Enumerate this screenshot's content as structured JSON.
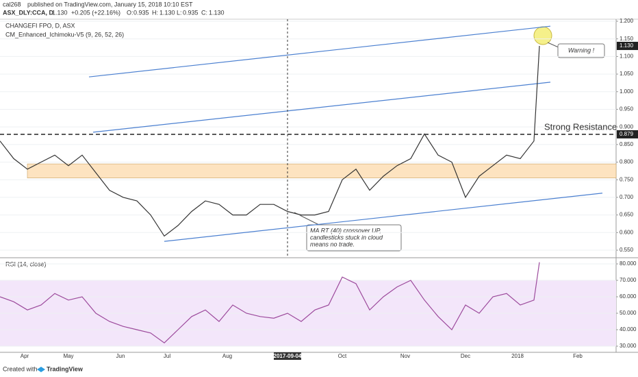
{
  "header": {
    "author": "cal268",
    "published": "published on TradingView.com, January 15, 2018 10:10 EST",
    "symbol": "ASX_DLY:CCA, D",
    "price": "1.130",
    "change": "+0.205 (+22.16%)",
    "open_label": "O:",
    "open": "0.935",
    "high_label": "H:",
    "high": "1.130",
    "low_label": "L:",
    "low": "0.935",
    "close_label": "C:",
    "close": "1.130"
  },
  "footer": {
    "created": "Created with",
    "brand": "TradingView"
  },
  "chart_data": [
    {
      "type": "line",
      "title": "CHANGEFI FPO, D, ASX",
      "subtitle": "CM_Enhanced_Ichimoku-V5 (9, 26, 52, 26)",
      "color": "#333333",
      "x": [
        0,
        5,
        10,
        15,
        20,
        25,
        30,
        35,
        40,
        45,
        50,
        55,
        60,
        65,
        70,
        75,
        80,
        85,
        90,
        95,
        100,
        105,
        110,
        115,
        120,
        125,
        130,
        135,
        140,
        145,
        150,
        155,
        160,
        165,
        170,
        175,
        180,
        185,
        190,
        195,
        197
      ],
      "values": [
        0.86,
        0.81,
        0.78,
        0.8,
        0.82,
        0.79,
        0.82,
        0.77,
        0.72,
        0.7,
        0.69,
        0.65,
        0.59,
        0.62,
        0.66,
        0.69,
        0.68,
        0.65,
        0.65,
        0.68,
        0.68,
        0.66,
        0.65,
        0.65,
        0.66,
        0.75,
        0.78,
        0.72,
        0.76,
        0.79,
        0.81,
        0.88,
        0.82,
        0.8,
        0.7,
        0.76,
        0.79,
        0.82,
        0.81,
        0.86,
        1.13
      ],
      "xlim": [
        0,
        225
      ],
      "ylim": [
        0.55,
        1.2
      ],
      "yticks": [
        {
          "value": 0.55,
          "label": "0.550"
        },
        {
          "value": 0.6,
          "label": "0.600"
        },
        {
          "value": 0.65,
          "label": "0.650"
        },
        {
          "value": 0.7,
          "label": "0.700"
        },
        {
          "value": 0.75,
          "label": "0.750"
        },
        {
          "value": 0.8,
          "label": "0.800"
        },
        {
          "value": 0.85,
          "label": "0.850"
        },
        {
          "value": 0.9,
          "label": "0.900"
        },
        {
          "value": 0.95,
          "label": "0.950"
        },
        {
          "value": 1.0,
          "label": "1.000"
        },
        {
          "value": 1.05,
          "label": "1.050"
        },
        {
          "value": 1.1,
          "label": "1.100"
        },
        {
          "value": 1.15,
          "label": "1.150"
        },
        {
          "value": 1.2,
          "label": "1.200"
        }
      ],
      "resistance": {
        "value": 0.879,
        "label": "0.879",
        "text": "Strong Resistance"
      },
      "zone": {
        "ylim": [
          0.755,
          0.795
        ],
        "color": "#fde3c0"
      },
      "trend_lines": [
        {
          "x": [
            32.5,
            201
          ],
          "y": [
            1.042,
            1.186
          ]
        },
        {
          "x": [
            34,
            201
          ],
          "y": [
            0.885,
            1.027
          ]
        },
        {
          "x": [
            60,
            220
          ],
          "y": [
            0.575,
            0.712
          ]
        }
      ],
      "trend_color": "#4a7fd0",
      "annotations": [
        "Warning !",
        "MA RT (40) crossover UP,",
        "candlesticks stuck in cloud",
        "means no trade."
      ]
    },
    {
      "type": "line",
      "title": "RSI (14, close)",
      "color": "#9c4a9c",
      "x": [
        0,
        5,
        10,
        15,
        20,
        25,
        30,
        35,
        40,
        45,
        50,
        55,
        60,
        65,
        70,
        75,
        80,
        85,
        90,
        95,
        100,
        105,
        110,
        115,
        120,
        125,
        130,
        135,
        140,
        145,
        150,
        155,
        160,
        165,
        170,
        175,
        180,
        185,
        190,
        195,
        197
      ],
      "values": [
        60,
        57,
        52,
        55,
        62,
        58,
        60,
        50,
        45,
        42,
        40,
        38,
        32,
        40,
        48,
        52,
        45,
        55,
        50,
        48,
        47,
        50,
        45,
        52,
        55,
        72,
        68,
        52,
        60,
        66,
        70,
        58,
        48,
        40,
        55,
        50,
        60,
        62,
        55,
        58,
        81
      ],
      "xlim": [
        0,
        225
      ],
      "ylim": [
        30,
        80
      ],
      "yticks": [
        {
          "value": 30,
          "label": "30.000"
        },
        {
          "value": 40,
          "label": "40.000"
        },
        {
          "value": 50,
          "label": "50.000"
        },
        {
          "value": 60,
          "label": "60.000"
        },
        {
          "value": 70,
          "label": "70.000"
        },
        {
          "value": 80,
          "label": "80.000"
        }
      ],
      "band": [
        30,
        70
      ],
      "xticks": [
        {
          "value": 9,
          "label": "Apr"
        },
        {
          "value": 25,
          "label": "May"
        },
        {
          "value": 44,
          "label": "Jun"
        },
        {
          "value": 61,
          "label": "Jul"
        },
        {
          "value": 83,
          "label": "Aug"
        },
        {
          "value": 105,
          "label": "2017-09-04"
        },
        {
          "value": 125,
          "label": "Oct"
        },
        {
          "value": 148,
          "label": "Nov"
        },
        {
          "value": 170,
          "label": "Dec"
        },
        {
          "value": 189,
          "label": "2018"
        },
        {
          "value": 211,
          "label": "Feb"
        }
      ]
    }
  ]
}
